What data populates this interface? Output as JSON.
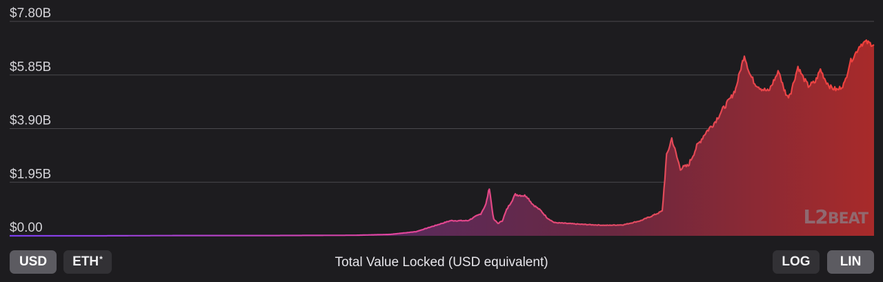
{
  "chart_data": {
    "type": "area",
    "title": "Total Value Locked (USD equivalent)",
    "y_tick_labels": [
      "$7.80B",
      "$5.85B",
      "$3.90B",
      "$1.95B",
      "$0.00"
    ],
    "y_ticks": [
      7.8,
      5.85,
      3.9,
      1.95,
      0
    ],
    "ylim": [
      0,
      7.8
    ],
    "y_unit": "billion USD",
    "x_range": [
      0,
      1
    ],
    "grid": true,
    "scale": "linear",
    "colors": {
      "start": "#7b3ff0",
      "middle": "#e2459c",
      "end": "#f0403a"
    },
    "series": [
      {
        "points": [
          [
            0.0,
            0.0
          ],
          [
            0.1,
            0.0
          ],
          [
            0.2,
            0.01
          ],
          [
            0.3,
            0.01
          ],
          [
            0.4,
            0.02
          ],
          [
            0.44,
            0.05
          ],
          [
            0.47,
            0.15
          ],
          [
            0.49,
            0.35
          ],
          [
            0.51,
            0.55
          ],
          [
            0.53,
            0.55
          ],
          [
            0.545,
            0.8
          ],
          [
            0.551,
            1.15
          ],
          [
            0.555,
            1.75
          ],
          [
            0.558,
            1.0
          ],
          [
            0.56,
            0.6
          ],
          [
            0.565,
            0.45
          ],
          [
            0.57,
            0.55
          ],
          [
            0.575,
            0.95
          ],
          [
            0.585,
            1.5
          ],
          [
            0.598,
            1.45
          ],
          [
            0.605,
            1.15
          ],
          [
            0.615,
            0.9
          ],
          [
            0.622,
            0.65
          ],
          [
            0.63,
            0.48
          ],
          [
            0.66,
            0.42
          ],
          [
            0.69,
            0.38
          ],
          [
            0.71,
            0.4
          ],
          [
            0.73,
            0.55
          ],
          [
            0.745,
            0.75
          ],
          [
            0.755,
            0.9
          ],
          [
            0.76,
            2.9
          ],
          [
            0.766,
            3.55
          ],
          [
            0.772,
            2.85
          ],
          [
            0.776,
            2.45
          ],
          [
            0.785,
            2.55
          ],
          [
            0.795,
            3.25
          ],
          [
            0.805,
            3.75
          ],
          [
            0.815,
            4.1
          ],
          [
            0.825,
            4.6
          ],
          [
            0.835,
            5.05
          ],
          [
            0.84,
            5.35
          ],
          [
            0.846,
            6.1
          ],
          [
            0.85,
            6.58
          ],
          [
            0.856,
            5.9
          ],
          [
            0.862,
            5.55
          ],
          [
            0.87,
            5.35
          ],
          [
            0.878,
            5.25
          ],
          [
            0.885,
            5.7
          ],
          [
            0.89,
            6.0
          ],
          [
            0.895,
            5.4
          ],
          [
            0.9,
            5.05
          ],
          [
            0.904,
            5.25
          ],
          [
            0.912,
            6.15
          ],
          [
            0.918,
            5.75
          ],
          [
            0.924,
            5.45
          ],
          [
            0.932,
            5.6
          ],
          [
            0.938,
            6.05
          ],
          [
            0.944,
            5.65
          ],
          [
            0.95,
            5.4
          ],
          [
            0.958,
            5.3
          ],
          [
            0.966,
            5.55
          ],
          [
            0.972,
            6.3
          ],
          [
            0.978,
            6.6
          ],
          [
            0.984,
            6.95
          ],
          [
            0.99,
            7.05
          ],
          [
            1.0,
            6.95
          ]
        ]
      }
    ]
  },
  "bottom_bar": {
    "buttons_left": [
      {
        "label": "USD",
        "active": true
      },
      {
        "label": "ETH",
        "sup": "*",
        "active": false
      }
    ],
    "buttons_right": [
      {
        "label": "LOG",
        "active": false
      },
      {
        "label": "LIN",
        "active": true
      }
    ]
  },
  "watermark": {
    "main": "L2",
    "sub": "BEAT"
  }
}
